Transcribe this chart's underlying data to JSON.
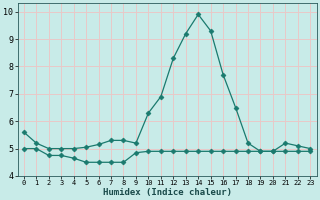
{
  "x": [
    0,
    1,
    2,
    3,
    4,
    5,
    6,
    7,
    8,
    9,
    10,
    11,
    12,
    13,
    14,
    15,
    16,
    17,
    18,
    19,
    20,
    21,
    22,
    23
  ],
  "y_upper": [
    5.6,
    5.2,
    5.0,
    5.0,
    5.0,
    5.05,
    5.15,
    5.3,
    5.3,
    5.2,
    6.3,
    6.9,
    8.3,
    9.2,
    9.9,
    9.3,
    7.7,
    6.5,
    5.2,
    4.9,
    4.9,
    5.2,
    5.1,
    5.0
  ],
  "y_lower": [
    5.0,
    5.0,
    4.75,
    4.75,
    4.65,
    4.5,
    4.5,
    4.5,
    4.5,
    4.85,
    4.9,
    4.9,
    4.9,
    4.9,
    4.9,
    4.9,
    4.9,
    4.9,
    4.9,
    4.9,
    4.9,
    4.9,
    4.9,
    4.9
  ],
  "line_color": "#1a7a6e",
  "bg_color": "#c8ebe8",
  "grid_major_color": "#e8c8c8",
  "grid_minor_color": "#c8ebe8",
  "xlabel": "Humidex (Indice chaleur)",
  "ylim": [
    4.0,
    10.3
  ],
  "xlim": [
    -0.5,
    23.5
  ],
  "yticks": [
    4,
    5,
    6,
    7,
    8,
    9,
    10
  ],
  "xticks": [
    0,
    1,
    2,
    3,
    4,
    5,
    6,
    7,
    8,
    9,
    10,
    11,
    12,
    13,
    14,
    15,
    16,
    17,
    18,
    19,
    20,
    21,
    22,
    23
  ],
  "xtick_labels": [
    "0",
    "1",
    "2",
    "3",
    "4",
    "5",
    "6",
    "7",
    "8",
    "9",
    "10",
    "11",
    "12",
    "13",
    "14",
    "15",
    "16",
    "17",
    "18",
    "19",
    "20",
    "21",
    "22",
    "23"
  ],
  "marker": "D",
  "marker_size": 2.5,
  "linewidth": 0.9
}
